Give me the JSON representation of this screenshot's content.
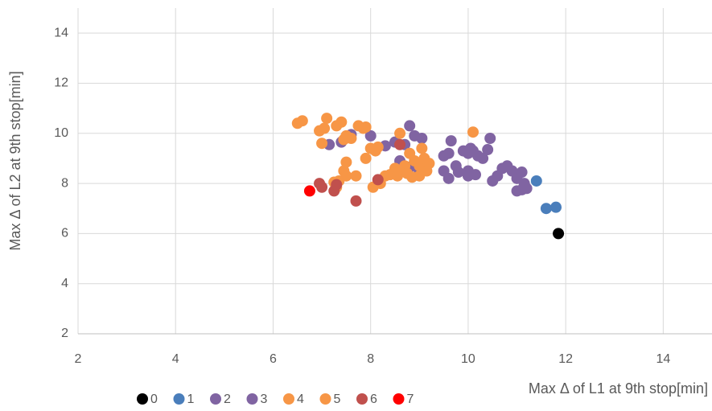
{
  "chart_data": {
    "type": "scatter",
    "x_label": "Max Δ of L1 at 9th stop[min]",
    "y_label": "Max Δ of L2 at 9th stop[min]",
    "xlim": [
      2,
      15
    ],
    "xticks": [
      2,
      4,
      6,
      8,
      10,
      12,
      14
    ],
    "ylim": [
      2,
      15
    ],
    "yticks": [
      2,
      4,
      6,
      8,
      10,
      12,
      14
    ],
    "grid": true,
    "legend": "bottom",
    "series": [
      {
        "name": "0",
        "color": "#000000",
        "x": [
          11.85
        ],
        "values": [
          6.0
        ]
      },
      {
        "name": "1",
        "color": "#4a7ebb",
        "x": [
          11.6,
          11.8,
          11.4
        ],
        "values": [
          7.0,
          7.05,
          8.1
        ]
      },
      {
        "name": "2",
        "color": "#8064a2",
        "x": [
          7.15,
          7.4,
          7.6,
          8.0,
          8.3,
          8.5,
          8.8,
          8.9,
          9.05,
          8.7,
          8.6,
          8.8,
          9.0,
          9.5,
          9.6,
          9.65,
          9.5,
          9.6,
          9.75,
          9.8,
          9.9
        ],
        "values": [
          9.55,
          9.65,
          9.95,
          9.9,
          9.5,
          9.65,
          10.3,
          9.9,
          9.8,
          9.55,
          8.9,
          8.65,
          8.5,
          9.1,
          9.2,
          9.7,
          8.5,
          8.2,
          8.7,
          8.45,
          9.3
        ]
      },
      {
        "name": "3",
        "color": "#8064a2",
        "x": [
          10.0,
          10.05,
          10.1,
          10.2,
          10.3,
          10.4,
          10.45,
          10.0,
          10.0,
          10.15,
          10.5,
          10.7,
          10.8,
          10.9,
          10.6,
          11.0,
          11.1,
          11.0,
          11.1,
          11.2,
          11.15
        ],
        "values": [
          9.2,
          9.4,
          9.3,
          9.1,
          9.0,
          9.35,
          9.8,
          8.5,
          8.3,
          8.35,
          8.1,
          8.6,
          8.7,
          8.5,
          8.3,
          8.2,
          8.45,
          7.7,
          7.75,
          7.8,
          8.0
        ]
      },
      {
        "name": "4",
        "color": "#f79646",
        "x": [
          6.5,
          6.6,
          6.95,
          7.0,
          7.05,
          7.1,
          7.3,
          7.4,
          7.5,
          7.45,
          7.75,
          7.85,
          7.9,
          7.6,
          7.9,
          8.0,
          8.1,
          8.15,
          7.5,
          7.45,
          7.5,
          7.35
        ],
        "values": [
          10.4,
          10.5,
          10.1,
          9.6,
          10.2,
          10.6,
          10.3,
          10.45,
          9.9,
          9.75,
          10.3,
          10.2,
          10.25,
          9.8,
          9.0,
          9.4,
          9.3,
          9.45,
          8.85,
          8.5,
          8.3,
          8.1
        ]
      },
      {
        "name": "5",
        "color": "#f79646",
        "x": [
          7.25,
          7.3,
          7.7,
          8.05,
          8.2,
          8.3,
          8.4,
          8.5,
          8.55,
          8.6,
          8.7,
          8.75,
          8.8,
          8.9,
          9.0,
          9.05,
          9.1,
          9.2,
          9.15,
          8.6,
          10.1,
          8.85,
          9.0
        ],
        "values": [
          8.05,
          7.85,
          8.3,
          7.85,
          8.0,
          8.3,
          8.35,
          8.6,
          8.3,
          8.5,
          8.7,
          8.4,
          9.2,
          8.9,
          8.7,
          9.4,
          9.0,
          8.8,
          8.5,
          10.0,
          10.05,
          8.25,
          8.3
        ]
      },
      {
        "name": "6",
        "color": "#c0504d",
        "x": [
          6.95,
          7.0,
          7.25,
          7.3,
          7.7,
          8.15,
          8.6
        ],
        "values": [
          8.0,
          7.85,
          7.7,
          7.95,
          7.3,
          8.15,
          9.55
        ]
      },
      {
        "name": "7",
        "color": "#ff0000",
        "x": [
          6.75
        ],
        "values": [
          7.7
        ]
      }
    ]
  }
}
